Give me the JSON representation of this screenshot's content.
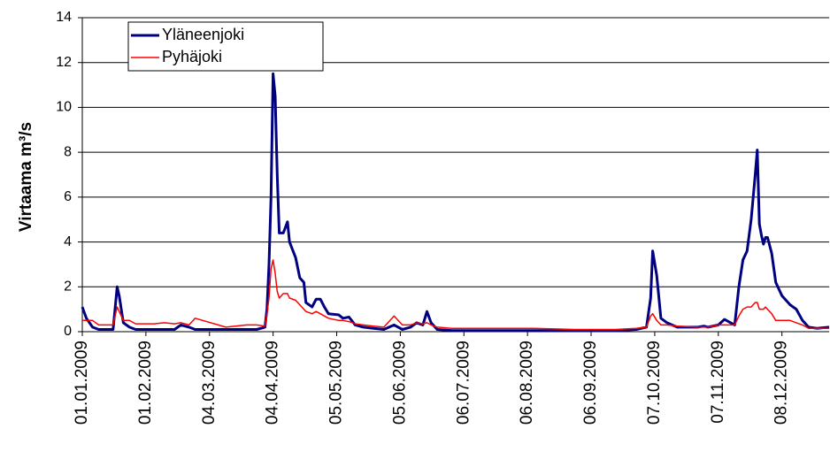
{
  "chart_data": {
    "type": "line",
    "y_label": "Virtaama m³/s",
    "x": [
      "01.01.2009",
      "03.01.2009",
      "06.01.2009",
      "09.01.2009",
      "13.01.2009",
      "16.01.2009",
      "18.01.2009",
      "19.01.2009",
      "21.01.2009",
      "24.01.2009",
      "27.01.2009",
      "05.02.2009",
      "10.02.2009",
      "15.02.2009",
      "18.02.2009",
      "22.02.2009",
      "25.02.2009",
      "12.03.2009",
      "22.03.2009",
      "27.03.2009",
      "31.03.2009",
      "01.04.2009",
      "02.04.2009",
      "03.04.2009",
      "04.04.2009",
      "05.04.2009",
      "06.04.2009",
      "07.04.2009",
      "09.04.2009",
      "11.04.2009",
      "12.04.2009",
      "15.04.2009",
      "17.04.2009",
      "19.04.2009",
      "20.04.2009",
      "23.04.2009",
      "25.04.2009",
      "27.04.2009",
      "29.04.2009",
      "01.05.2009",
      "06.05.2009",
      "08.05.2009",
      "11.05.2009",
      "14.05.2009",
      "18.05.2009",
      "23.05.2009",
      "28.05.2009",
      "02.06.2009",
      "06.06.2009",
      "10.06.2009",
      "13.06.2009",
      "16.06.2009",
      "18.06.2009",
      "20.06.2009",
      "23.06.2009",
      "30.06.2009",
      "20.07.2009",
      "09.08.2009",
      "29.08.2009",
      "18.09.2009",
      "28.09.2009",
      "03.10.2009",
      "05.10.2009",
      "06.10.2009",
      "08.10.2009",
      "10.10.2009",
      "13.10.2009",
      "18.10.2009",
      "28.10.2009",
      "31.10.2009",
      "02.11.2009",
      "07.11.2009",
      "10.11.2009",
      "13.11.2009",
      "15.11.2009",
      "17.11.2009",
      "19.11.2009",
      "21.11.2009",
      "23.11.2009",
      "25.11.2009",
      "26.11.2009",
      "27.11.2009",
      "28.11.2009",
      "29.11.2009",
      "30.11.2009",
      "01.12.2009",
      "03.12.2009",
      "05.12.2009",
      "08.12.2009",
      "12.12.2009",
      "15.12.2009",
      "18.12.2009",
      "21.12.2009",
      "25.12.2009",
      "31.12.2009"
    ],
    "series": [
      {
        "name": "Yläneenjoki",
        "color": "#000080",
        "values": [
          1.1,
          0.6,
          0.2,
          0.1,
          0.1,
          0.1,
          2.0,
          1.6,
          0.4,
          0.2,
          0.1,
          0.1,
          0.1,
          0.1,
          0.3,
          0.2,
          0.1,
          0.1,
          0.1,
          0.1,
          0.2,
          1.0,
          3.0,
          6.0,
          11.5,
          10.5,
          7.0,
          4.4,
          4.4,
          4.9,
          4.0,
          3.3,
          2.4,
          2.2,
          1.3,
          1.1,
          1.45,
          1.45,
          1.1,
          0.8,
          0.75,
          0.6,
          0.65,
          0.3,
          0.2,
          0.15,
          0.1,
          0.3,
          0.1,
          0.2,
          0.4,
          0.3,
          0.9,
          0.4,
          0.1,
          0.05,
          0.05,
          0.05,
          0.05,
          0.05,
          0.1,
          0.2,
          1.5,
          3.6,
          2.5,
          0.6,
          0.4,
          0.2,
          0.2,
          0.25,
          0.2,
          0.3,
          0.55,
          0.4,
          0.3,
          2.0,
          3.2,
          3.6,
          5.0,
          7.0,
          8.1,
          4.8,
          4.3,
          3.9,
          4.2,
          4.2,
          3.5,
          2.2,
          1.6,
          1.2,
          1.0,
          0.5,
          0.2,
          0.15,
          0.2
        ]
      },
      {
        "name": "Pyhäjoki",
        "color": "#ff0000",
        "values": [
          0.5,
          0.5,
          0.5,
          0.3,
          0.3,
          0.3,
          1.1,
          0.9,
          0.5,
          0.5,
          0.35,
          0.35,
          0.4,
          0.35,
          0.4,
          0.3,
          0.6,
          0.2,
          0.3,
          0.3,
          0.25,
          0.8,
          1.5,
          2.8,
          3.2,
          2.6,
          1.8,
          1.5,
          1.7,
          1.7,
          1.5,
          1.4,
          1.2,
          1.0,
          0.9,
          0.8,
          0.9,
          0.8,
          0.7,
          0.6,
          0.5,
          0.5,
          0.45,
          0.35,
          0.3,
          0.25,
          0.2,
          0.7,
          0.3,
          0.3,
          0.4,
          0.35,
          0.4,
          0.3,
          0.2,
          0.15,
          0.15,
          0.15,
          0.1,
          0.1,
          0.15,
          0.2,
          0.7,
          0.8,
          0.5,
          0.3,
          0.3,
          0.25,
          0.2,
          0.2,
          0.2,
          0.3,
          0.3,
          0.3,
          0.3,
          0.7,
          1.0,
          1.1,
          1.1,
          1.3,
          1.3,
          1.0,
          1.0,
          1.0,
          1.1,
          1.0,
          0.8,
          0.5,
          0.5,
          0.5,
          0.4,
          0.3,
          0.15,
          0.15,
          0.15
        ]
      }
    ],
    "xlim": [
      "01.01.2009",
      "31.12.2009"
    ],
    "xticks": [
      "01.01.2009",
      "01.02.2009",
      "04.03.2009",
      "04.04.2009",
      "05.05.2009",
      "05.06.2009",
      "06.07.2009",
      "06.08.2009",
      "06.09.2009",
      "07.10.2009",
      "07.11.2009",
      "08.12.2009"
    ],
    "ylim": [
      0,
      14
    ],
    "yticks": [
      0,
      2,
      4,
      6,
      8,
      10,
      12,
      14
    ],
    "grid": true,
    "legend": "upper left"
  }
}
